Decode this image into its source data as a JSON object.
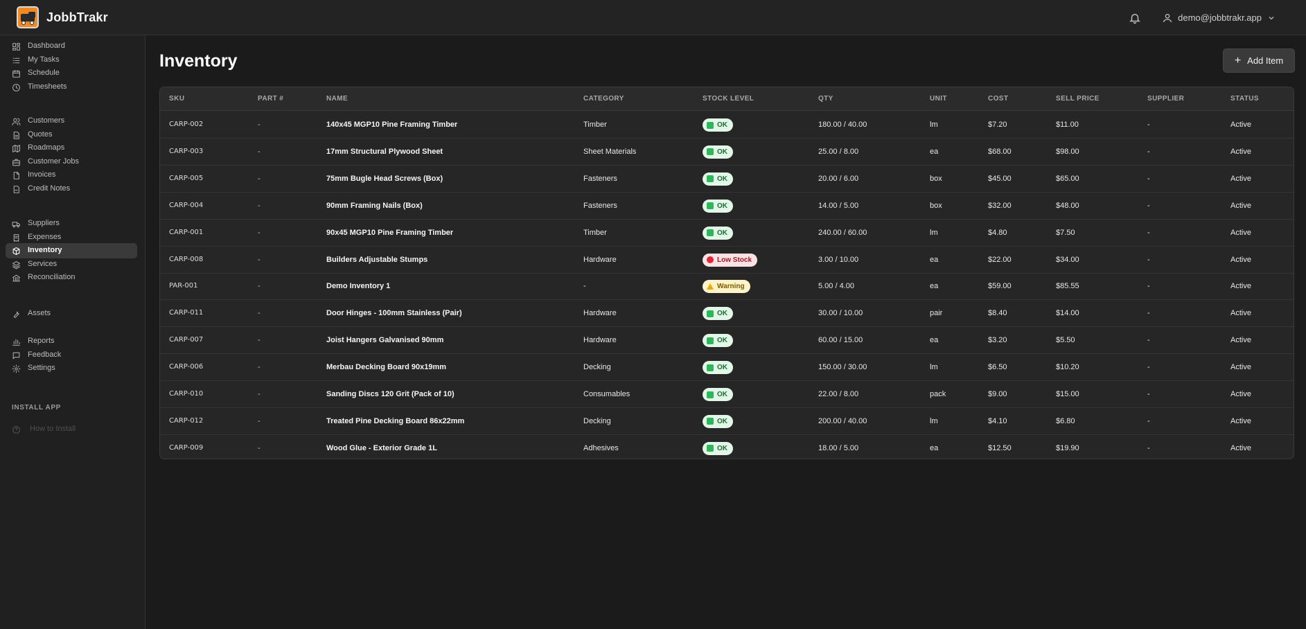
{
  "app": {
    "brand": "JobbTrakr"
  },
  "header": {
    "user_email": "demo@jobbtrakr.app"
  },
  "sidebar": {
    "groups": [
      [
        {
          "label": "Dashboard",
          "icon": "dashboard-icon"
        },
        {
          "label": "My Tasks",
          "icon": "tasks-icon"
        },
        {
          "label": "Schedule",
          "icon": "calendar-icon"
        },
        {
          "label": "Timesheets",
          "icon": "clock-icon"
        }
      ],
      [
        {
          "label": "Customers",
          "icon": "users-icon"
        },
        {
          "label": "Quotes",
          "icon": "document-icon"
        },
        {
          "label": "Roadmaps",
          "icon": "map-icon"
        },
        {
          "label": "Customer Jobs",
          "icon": "briefcase-icon"
        },
        {
          "label": "Invoices",
          "icon": "file-icon"
        },
        {
          "label": "Credit Notes",
          "icon": "credit-note-icon"
        }
      ],
      [
        {
          "label": "Suppliers",
          "icon": "truck-icon"
        },
        {
          "label": "Expenses",
          "icon": "receipt-icon"
        },
        {
          "label": "Inventory",
          "icon": "box-icon",
          "active": true
        },
        {
          "label": "Services",
          "icon": "layers-icon"
        },
        {
          "label": "Reconciliation",
          "icon": "bank-icon"
        }
      ],
      [
        {
          "label": "Assets",
          "icon": "wrench-icon"
        }
      ],
      [
        {
          "label": "Reports",
          "icon": "bar-chart-icon"
        },
        {
          "label": "Feedback",
          "icon": "message-icon"
        },
        {
          "label": "Settings",
          "icon": "gear-icon"
        }
      ]
    ],
    "install_section": "INSTALL APP",
    "install_item": "How to Install"
  },
  "page": {
    "title": "Inventory",
    "add_button": "Add Item"
  },
  "table": {
    "columns": [
      "SKU",
      "PART #",
      "NAME",
      "CATEGORY",
      "STOCK LEVEL",
      "QTY",
      "UNIT",
      "COST",
      "SELL PRICE",
      "SUPPLIER",
      "STATUS"
    ],
    "rows": [
      {
        "sku": "CARP-002",
        "part": "-",
        "name": "140x45 MGP10 Pine Framing Timber",
        "category": "Timber",
        "stock": "OK",
        "stock_type": "ok",
        "qty": "180.00 / 40.00",
        "unit": "lm",
        "cost": "$7.20",
        "sell": "$11.00",
        "supplier": "-",
        "status": "Active"
      },
      {
        "sku": "CARP-003",
        "part": "-",
        "name": "17mm Structural Plywood Sheet",
        "category": "Sheet Materials",
        "stock": "OK",
        "stock_type": "ok",
        "qty": "25.00 / 8.00",
        "unit": "ea",
        "cost": "$68.00",
        "sell": "$98.00",
        "supplier": "-",
        "status": "Active"
      },
      {
        "sku": "CARP-005",
        "part": "-",
        "name": "75mm Bugle Head Screws (Box)",
        "category": "Fasteners",
        "stock": "OK",
        "stock_type": "ok",
        "qty": "20.00 / 6.00",
        "unit": "box",
        "cost": "$45.00",
        "sell": "$65.00",
        "supplier": "-",
        "status": "Active"
      },
      {
        "sku": "CARP-004",
        "part": "-",
        "name": "90mm Framing Nails (Box)",
        "category": "Fasteners",
        "stock": "OK",
        "stock_type": "ok",
        "qty": "14.00 / 5.00",
        "unit": "box",
        "cost": "$32.00",
        "sell": "$48.00",
        "supplier": "-",
        "status": "Active"
      },
      {
        "sku": "CARP-001",
        "part": "-",
        "name": "90x45 MGP10 Pine Framing Timber",
        "category": "Timber",
        "stock": "OK",
        "stock_type": "ok",
        "qty": "240.00 / 60.00",
        "unit": "lm",
        "cost": "$4.80",
        "sell": "$7.50",
        "supplier": "-",
        "status": "Active"
      },
      {
        "sku": "CARP-008",
        "part": "-",
        "name": "Builders Adjustable Stumps",
        "category": "Hardware",
        "stock": "Low Stock",
        "stock_type": "low",
        "qty": "3.00 / 10.00",
        "unit": "ea",
        "cost": "$22.00",
        "sell": "$34.00",
        "supplier": "-",
        "status": "Active"
      },
      {
        "sku": "PAR-001",
        "part": "-",
        "name": "Demo Inventory 1",
        "category": "-",
        "stock": "Warning",
        "stock_type": "warn",
        "qty": "5.00 / 4.00",
        "unit": "ea",
        "cost": "$59.00",
        "sell": "$85.55",
        "supplier": "-",
        "status": "Active"
      },
      {
        "sku": "CARP-011",
        "part": "-",
        "name": "Door Hinges - 100mm Stainless (Pair)",
        "category": "Hardware",
        "stock": "OK",
        "stock_type": "ok",
        "qty": "30.00 / 10.00",
        "unit": "pair",
        "cost": "$8.40",
        "sell": "$14.00",
        "supplier": "-",
        "status": "Active"
      },
      {
        "sku": "CARP-007",
        "part": "-",
        "name": "Joist Hangers Galvanised 90mm",
        "category": "Hardware",
        "stock": "OK",
        "stock_type": "ok",
        "qty": "60.00 / 15.00",
        "unit": "ea",
        "cost": "$3.20",
        "sell": "$5.50",
        "supplier": "-",
        "status": "Active"
      },
      {
        "sku": "CARP-006",
        "part": "-",
        "name": "Merbau Decking Board 90x19mm",
        "category": "Decking",
        "stock": "OK",
        "stock_type": "ok",
        "qty": "150.00 / 30.00",
        "unit": "lm",
        "cost": "$6.50",
        "sell": "$10.20",
        "supplier": "-",
        "status": "Active"
      },
      {
        "sku": "CARP-010",
        "part": "-",
        "name": "Sanding Discs 120 Grit (Pack of 10)",
        "category": "Consumables",
        "stock": "OK",
        "stock_type": "ok",
        "qty": "22.00 / 8.00",
        "unit": "pack",
        "cost": "$9.00",
        "sell": "$15.00",
        "supplier": "-",
        "status": "Active"
      },
      {
        "sku": "CARP-012",
        "part": "-",
        "name": "Treated Pine Decking Board 86x22mm",
        "category": "Decking",
        "stock": "OK",
        "stock_type": "ok",
        "qty": "200.00 / 40.00",
        "unit": "lm",
        "cost": "$4.10",
        "sell": "$6.80",
        "supplier": "-",
        "status": "Active"
      },
      {
        "sku": "CARP-009",
        "part": "-",
        "name": "Wood Glue - Exterior Grade 1L",
        "category": "Adhesives",
        "stock": "OK",
        "stock_type": "ok",
        "qty": "18.00 / 5.00",
        "unit": "ea",
        "cost": "$12.50",
        "sell": "$19.90",
        "supplier": "-",
        "status": "Active"
      }
    ]
  }
}
